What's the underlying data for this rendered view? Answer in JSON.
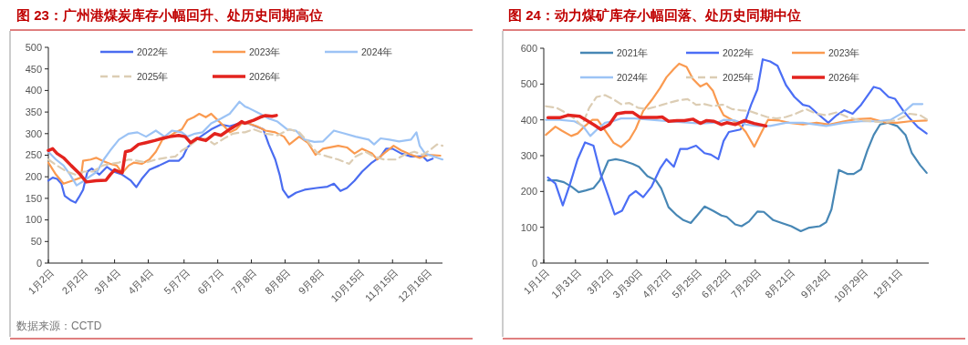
{
  "chart_data": [
    {
      "type": "line",
      "title": "图 23：广州港煤炭库存小幅回升、处历史同期高位",
      "annotations": [
        "数据来源：CCTD"
      ],
      "legend": "top",
      "xlim": [
        "--01-02",
        "--12-31"
      ],
      "ylim": [
        0,
        500
      ],
      "yticks": [
        0,
        50,
        100,
        150,
        200,
        250,
        300,
        350,
        400,
        450,
        500
      ],
      "xticks": [
        {
          "value": "--01-02",
          "label": "1月2日"
        },
        {
          "value": "--02-02",
          "label": "2月2日"
        },
        {
          "value": "--03-04",
          "label": "3月4日"
        },
        {
          "value": "--04-04",
          "label": "4月4日"
        },
        {
          "value": "--05-07",
          "label": "5月7日"
        },
        {
          "value": "--06-07",
          "label": "6月7日"
        },
        {
          "value": "--07-08",
          "label": "7月8日"
        },
        {
          "value": "--08-08",
          "label": "8月8日"
        },
        {
          "value": "--09-08",
          "label": "9月8日"
        },
        {
          "value": "--10-15",
          "label": "10月15日"
        },
        {
          "value": "--11-15",
          "label": "11月15日"
        },
        {
          "value": "--12-16",
          "label": "12月16日"
        }
      ],
      "series": [
        {
          "name": "2022年",
          "color": "#4a6cf0",
          "x": [
            "--01-02",
            "--01-06",
            "--01-10",
            "--01-14",
            "--01-17",
            "--01-23",
            "--01-27",
            "--01-30",
            "--02-03",
            "--02-07",
            "--02-11",
            "--02-18",
            "--02-25",
            "--03-03",
            "--03-11",
            "--03-19",
            "--03-24",
            "--03-29",
            "--04-05",
            "--04-14",
            "--04-23",
            "--05-02",
            "--05-06",
            "--05-10",
            "--05-16",
            "--05-24",
            "--06-01",
            "--06-10",
            "--06-18",
            "--06-27",
            "--07-05",
            "--07-19",
            "--07-24",
            "--07-30",
            "--08-03",
            "--08-06",
            "--08-11",
            "--08-18",
            "--08-26",
            "--09-06",
            "--09-16",
            "--09-22",
            "--09-28",
            "--10-04",
            "--10-11",
            "--10-18",
            "--10-27",
            "--11-04",
            "--11-09",
            "--11-15",
            "--11-23",
            "--12-02",
            "--12-13",
            "--12-17",
            "--12-22"
          ],
          "values": [
            191,
            198,
            195,
            184,
            156,
            145,
            140,
            152,
            170,
            212,
            219,
            205,
            223,
            212,
            205,
            191,
            176,
            195,
            216,
            226,
            237,
            237,
            247,
            268,
            282,
            296,
            310,
            321,
            317,
            324,
            324,
            310,
            275,
            240,
            205,
            170,
            152,
            163,
            170,
            174,
            177,
            184,
            167,
            174,
            191,
            212,
            233,
            247,
            265,
            265,
            254,
            247,
            247,
            237,
            242
          ]
        },
        {
          "name": "2023年",
          "color": "#fa9a50",
          "x": [
            "--01-02",
            "--01-09",
            "--01-16",
            "--01-24",
            "--02-01",
            "--02-03",
            "--02-10",
            "--02-15",
            "--02-21",
            "--02-28",
            "--03-06",
            "--03-11",
            "--03-17",
            "--03-22",
            "--03-29",
            "--04-05",
            "--04-11",
            "--04-17",
            "--04-23",
            "--04-29",
            "--05-05",
            "--05-10",
            "--05-16",
            "--05-21",
            "--05-27",
            "--06-01",
            "--06-07",
            "--06-13",
            "--06-18",
            "--06-24",
            "--06-29",
            "--07-05",
            "--07-13",
            "--07-21",
            "--07-30",
            "--08-07",
            "--08-12",
            "--08-21",
            "--08-29",
            "--09-05",
            "--09-12",
            "--09-26",
            "--10-04",
            "--10-11",
            "--10-18",
            "--10-27",
            "--11-01",
            "--11-07",
            "--11-16",
            "--11-23",
            "--12-02",
            "--12-10",
            "--12-18",
            "--12-29"
          ],
          "values": [
            233,
            205,
            184,
            191,
            198,
            237,
            240,
            244,
            237,
            230,
            226,
            209,
            226,
            233,
            230,
            240,
            258,
            286,
            293,
            303,
            310,
            331,
            338,
            346,
            338,
            346,
            331,
            317,
            303,
            310,
            324,
            324,
            317,
            307,
            303,
            293,
            275,
            293,
            279,
            251,
            265,
            272,
            268,
            254,
            265,
            254,
            240,
            254,
            272,
            261,
            251,
            244,
            251,
            249
          ]
        },
        {
          "name": "2024年",
          "color": "#9cc3f5",
          "x": [
            "--01-02",
            "--01-09",
            "--01-16",
            "--01-22",
            "--01-28",
            "--02-04",
            "--02-10",
            "--02-16",
            "--02-22",
            "--02-28",
            "--03-08",
            "--03-17",
            "--03-25",
            "--04-02",
            "--04-11",
            "--04-19",
            "--04-26",
            "--05-05",
            "--05-10",
            "--05-17",
            "--05-24",
            "--06-01",
            "--06-10",
            "--06-18",
            "--06-27",
            "--07-02",
            "--07-05",
            "--07-16",
            "--07-24",
            "--08-01",
            "--08-10",
            "--08-18",
            "--08-26",
            "--09-04",
            "--09-12",
            "--09-22",
            "--10-02",
            "--10-12",
            "--10-24",
            "--10-29",
            "--11-04",
            "--11-12",
            "--11-21",
            "--12-02",
            "--12-07",
            "--12-10",
            "--12-15",
            "--12-23",
            "--12-31"
          ],
          "values": [
            258,
            240,
            226,
            205,
            180,
            191,
            202,
            212,
            240,
            261,
            286,
            300,
            303,
            293,
            307,
            293,
            307,
            303,
            293,
            300,
            303,
            324,
            335,
            346,
            374,
            363,
            360,
            346,
            335,
            328,
            310,
            307,
            286,
            281,
            282,
            307,
            300,
            293,
            286,
            275,
            289,
            286,
            282,
            286,
            303,
            272,
            254,
            247,
            240
          ]
        },
        {
          "name": "2025年",
          "color": "#dccdb4",
          "line_style": "dashed",
          "x": [
            "--01-02",
            "--01-10",
            "--01-19",
            "--01-27",
            "--02-04",
            "--02-12",
            "--02-21",
            "--02-28",
            "--03-08",
            "--03-17",
            "--03-25",
            "--04-02",
            "--04-11",
            "--04-20",
            "--04-29",
            "--05-05",
            "--05-10",
            "--05-19",
            "--05-27",
            "--06-04",
            "--06-13",
            "--06-21",
            "--06-29",
            "--07-02",
            "--07-10",
            "--07-21",
            "--08-01",
            "--08-12",
            "--08-21",
            "--08-29",
            "--09-07",
            "--09-16",
            "--09-26",
            "--10-06",
            "--10-12",
            "--10-21",
            "--10-29",
            "--11-07",
            "--11-18",
            "--11-26",
            "--12-05",
            "--12-13",
            "--12-21",
            "--12-26",
            "--12-31"
          ],
          "values": [
            240,
            226,
            212,
            205,
            212,
            212,
            226,
            230,
            233,
            240,
            237,
            233,
            240,
            244,
            247,
            261,
            268,
            286,
            289,
            275,
            289,
            300,
            303,
            303,
            310,
            300,
            296,
            310,
            303,
            282,
            254,
            247,
            240,
            230,
            247,
            258,
            247,
            240,
            240,
            251,
            258,
            251,
            265,
            275,
            272
          ]
        },
        {
          "name": "2026年",
          "color": "#e3231e",
          "x": [
            "--01-02",
            "--01-06",
            "--01-10",
            "--01-16",
            "--01-23",
            "--01-30",
            "--02-06",
            "--02-15",
            "--02-24",
            "--02-28",
            "--03-04",
            "--03-08",
            "--03-11",
            "--03-14",
            "--03-19",
            "--03-26",
            "--04-02",
            "--04-10",
            "--04-17",
            "--04-24",
            "--05-02",
            "--05-08",
            "--05-13",
            "--05-19",
            "--05-27",
            "--06-04",
            "--06-10",
            "--06-18",
            "--06-27",
            "--06-29",
            "--07-02",
            "--07-10",
            "--07-16",
            "--07-21",
            "--07-27",
            "--07-31"
          ],
          "values": [
            261,
            265,
            254,
            244,
            226,
            209,
            188,
            191,
            192,
            205,
            216,
            212,
            209,
            258,
            261,
            275,
            279,
            284,
            289,
            293,
            296,
            293,
            279,
            289,
            284,
            300,
            296,
            310,
            324,
            328,
            324,
            331,
            338,
            342,
            340,
            342
          ]
        }
      ]
    },
    {
      "type": "line",
      "title": "图 24：动力煤矿库存小幅回落、处历史同期中位",
      "legend": "top",
      "xlim": [
        "--01-01",
        "--12-31"
      ],
      "ylim": [
        0,
        600
      ],
      "yticks": [
        0,
        100,
        200,
        300,
        400,
        500,
        600
      ],
      "xticks": [
        {
          "value": "--01-01",
          "label": "1月1日"
        },
        {
          "value": "--01-31",
          "label": "1月31日"
        },
        {
          "value": "--03-02",
          "label": "3月2日"
        },
        {
          "value": "--03-30",
          "label": "3月30日"
        },
        {
          "value": "--04-27",
          "label": "4月27日"
        },
        {
          "value": "--05-25",
          "label": "5月25日"
        },
        {
          "value": "--06-22",
          "label": "6月22日"
        },
        {
          "value": "--07-20",
          "label": "7月20日"
        },
        {
          "value": "--08-21",
          "label": "8月21日"
        },
        {
          "value": "--09-24",
          "label": "9月24日"
        },
        {
          "value": "--10-29",
          "label": "10月29日"
        },
        {
          "value": "--12-01",
          "label": "12月1日"
        }
      ],
      "series": [
        {
          "name": "2021年",
          "color": "#4787b5",
          "x": [
            "--01-05",
            "--01-13",
            "--01-20",
            "--01-27",
            "--02-03",
            "--02-10",
            "--02-17",
            "--02-23",
            "--03-03",
            "--03-10",
            "--03-17",
            "--03-26",
            "--04-01",
            "--04-09",
            "--04-17",
            "--04-22",
            "--04-29",
            "--05-07",
            "--05-13",
            "--05-20",
            "--05-26",
            "--06-02",
            "--06-10",
            "--06-18",
            "--06-23",
            "--07-01",
            "--07-07",
            "--07-14",
            "--07-22",
            "--07-28",
            "--08-06",
            "--08-14",
            "--08-23",
            "--09-01",
            "--09-09",
            "--09-19",
            "--09-25",
            "--09-30",
            "--10-07",
            "--10-15",
            "--10-21",
            "--10-28",
            "--11-03",
            "--11-09",
            "--11-15",
            "--11-22",
            "--12-01",
            "--12-09",
            "--12-15",
            "--12-23",
            "--12-29"
          ],
          "values": [
            231,
            231,
            226,
            214,
            198,
            203,
            209,
            231,
            286,
            290,
            286,
            277,
            269,
            243,
            231,
            209,
            156,
            133,
            120,
            112,
            133,
            158,
            146,
            133,
            129,
            108,
            103,
            116,
            144,
            143,
            120,
            112,
            103,
            89,
            99,
            103,
            114,
            150,
            260,
            249,
            249,
            262,
            315,
            358,
            387,
            392,
            383,
            358,
            307,
            273,
            252
          ]
        },
        {
          "name": "2022年",
          "color": "#4b6ef5",
          "x": [
            "--01-05",
            "--01-12",
            "--01-19",
            "--01-26",
            "--02-02",
            "--02-09",
            "--02-17",
            "--02-24",
            "--03-03",
            "--03-09",
            "--03-16",
            "--03-23",
            "--03-29",
            "--04-05",
            "--04-13",
            "--04-21",
            "--04-27",
            "--05-04",
            "--05-10",
            "--05-17",
            "--05-25",
            "--06-02",
            "--06-08",
            "--06-15",
            "--06-20",
            "--06-25",
            "--07-01",
            "--07-06",
            "--07-11",
            "--07-16",
            "--07-22",
            "--07-27",
            "--08-03",
            "--08-10",
            "--08-18",
            "--08-26",
            "--09-03",
            "--09-09",
            "--09-17",
            "--09-27",
            "--10-05",
            "--10-12",
            "--10-20",
            "--10-28",
            "--11-09",
            "--11-15",
            "--11-23",
            "--11-29",
            "--12-07",
            "--12-13",
            "--12-21",
            "--12-29"
          ],
          "values": [
            239,
            222,
            161,
            222,
            290,
            337,
            328,
            247,
            188,
            136,
            146,
            188,
            201,
            184,
            214,
            264,
            290,
            269,
            319,
            319,
            328,
            307,
            303,
            290,
            341,
            366,
            370,
            373,
            400,
            442,
            485,
            569,
            563,
            551,
            497,
            464,
            442,
            438,
            417,
            392,
            413,
            427,
            417,
            442,
            492,
            487,
            464,
            459,
            425,
            404,
            379,
            362
          ]
        },
        {
          "name": "2023年",
          "color": "#fa9a50",
          "x": [
            "--01-03",
            "--01-12",
            "--01-18",
            "--01-27",
            "--02-02",
            "--02-09",
            "--02-16",
            "--02-21",
            "--02-28",
            "--03-08",
            "--03-15",
            "--03-23",
            "--03-29",
            "--04-05",
            "--04-13",
            "--04-21",
            "--04-27",
            "--05-04",
            "--05-09",
            "--05-16",
            "--05-22",
            "--05-29",
            "--06-04",
            "--06-10",
            "--06-15",
            "--06-20",
            "--06-28",
            "--07-06",
            "--07-11",
            "--07-19",
            "--07-26",
            "--08-01",
            "--08-12",
            "--08-21",
            "--09-03",
            "--09-16",
            "--09-28",
            "--10-12",
            "--10-24",
            "--11-06",
            "--11-19",
            "--12-01",
            "--12-13",
            "--12-29"
          ],
          "values": [
            358,
            381,
            370,
            355,
            362,
            383,
            400,
            400,
            370,
            336,
            324,
            345,
            375,
            425,
            455,
            489,
            519,
            542,
            557,
            548,
            514,
            493,
            502,
            481,
            442,
            413,
            400,
            383,
            366,
            325,
            366,
            400,
            398,
            392,
            387,
            392,
            387,
            396,
            402,
            404,
            393,
            392,
            396,
            398
          ]
        },
        {
          "name": "2024年",
          "color": "#9cc3f5",
          "x": [
            "--01-03",
            "--01-16",
            "--01-30",
            "--02-07",
            "--02-14",
            "--02-21",
            "--02-28",
            "--03-07",
            "--03-15",
            "--03-28",
            "--04-13",
            "--04-29",
            "--05-14",
            "--05-30",
            "--06-15",
            "--06-20",
            "--07-01",
            "--07-11",
            "--07-22",
            "--08-03",
            "--08-18",
            "--09-03",
            "--09-25",
            "--10-12",
            "--10-28",
            "--11-12",
            "--11-25",
            "--12-07",
            "--12-16",
            "--12-25"
          ],
          "values": [
            400,
            400,
            396,
            383,
            355,
            375,
            392,
            396,
            404,
            404,
            400,
            396,
            393,
            390,
            393,
            400,
            398,
            387,
            383,
            383,
            392,
            392,
            383,
            392,
            396,
            396,
            400,
            421,
            444,
            444
          ]
        },
        {
          "name": "2025年",
          "color": "#dccdb4",
          "line_style": "dashed",
          "x": [
            "--01-03",
            "--01-13",
            "--01-21",
            "--01-30",
            "--02-06",
            "--02-13",
            "--02-20",
            "--02-28",
            "--03-07",
            "--03-15",
            "--03-23",
            "--03-31",
            "--04-08",
            "--04-16",
            "--04-23",
            "--05-01",
            "--05-09",
            "--05-17",
            "--05-25",
            "--06-02",
            "--06-10",
            "--06-18",
            "--06-20",
            "--06-28",
            "--07-06",
            "--07-14",
            "--07-22",
            "--07-31",
            "--08-09",
            "--08-18",
            "--08-27",
            "--09-06",
            "--09-16",
            "--09-25",
            "--10-05",
            "--10-15",
            "--10-25",
            "--11-06",
            "--11-19",
            "--12-01",
            "--12-13",
            "--12-23",
            "--12-31"
          ],
          "values": [
            438,
            434,
            421,
            404,
            383,
            434,
            464,
            469,
            459,
            444,
            447,
            434,
            430,
            436,
            442,
            449,
            455,
            458,
            442,
            444,
            438,
            442,
            442,
            430,
            427,
            425,
            417,
            408,
            404,
            408,
            417,
            430,
            417,
            413,
            421,
            408,
            400,
            396,
            393,
            400,
            417,
            413,
            398
          ]
        },
        {
          "name": "2026年",
          "color": "#e3231e",
          "x": [
            "--01-05",
            "--01-16",
            "--01-24",
            "--02-04",
            "--02-12",
            "--02-18",
            "--02-24",
            "--03-04",
            "--03-11",
            "--03-19",
            "--03-26",
            "--04-02",
            "--04-10",
            "--04-18",
            "--04-23",
            "--04-29",
            "--05-07",
            "--05-14",
            "--05-22",
            "--05-29",
            "--06-04",
            "--06-11",
            "--06-18",
            "--06-23",
            "--07-01",
            "--07-10",
            "--07-19",
            "--07-30"
          ],
          "values": [
            406,
            406,
            413,
            410,
            396,
            385,
            373,
            387,
            417,
            421,
            421,
            407,
            407,
            407,
            408,
            396,
            398,
            398,
            402,
            390,
            398,
            396,
            387,
            392,
            387,
            398,
            390,
            383
          ]
        }
      ]
    }
  ]
}
